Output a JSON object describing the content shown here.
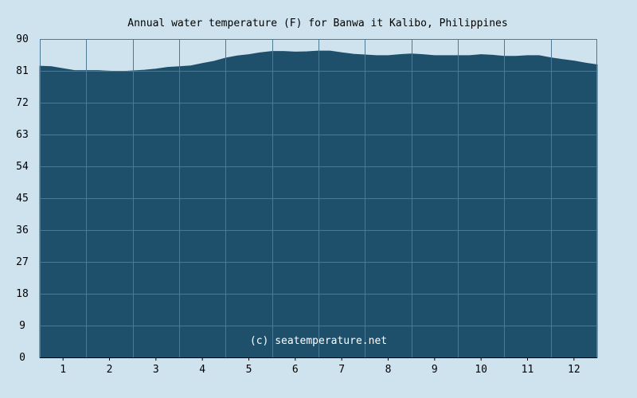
{
  "chart_data": {
    "type": "area",
    "title": "Annual water temperature (F) for Banwa it Kalibo, Philippines",
    "xlabel": "",
    "ylabel": "",
    "x_ticks": [
      "1",
      "2",
      "3",
      "4",
      "5",
      "6",
      "7",
      "8",
      "9",
      "10",
      "11",
      "12"
    ],
    "y_ticks": [
      "0",
      "9",
      "18",
      "27",
      "36",
      "45",
      "54",
      "63",
      "72",
      "81",
      "90"
    ],
    "ylim": [
      0,
      90
    ],
    "xlim": [
      0.5,
      12.5
    ],
    "grid": true,
    "x": [
      0.5,
      0.75,
      1.0,
      1.25,
      1.5,
      1.75,
      2.0,
      2.25,
      2.5,
      2.75,
      3.0,
      3.25,
      3.5,
      3.75,
      4.0,
      4.25,
      4.5,
      4.75,
      5.0,
      5.25,
      5.5,
      5.75,
      6.0,
      6.25,
      6.5,
      6.75,
      7.0,
      7.25,
      7.5,
      7.75,
      8.0,
      8.25,
      8.5,
      8.75,
      9.0,
      9.25,
      9.5,
      9.75,
      10.0,
      10.25,
      10.5,
      10.75,
      11.0,
      11.25,
      11.5,
      11.75,
      12.0,
      12.25,
      12.5
    ],
    "values": [
      82.3,
      82.2,
      81.6,
      81.1,
      81.1,
      81.1,
      80.9,
      80.8,
      81.0,
      81.2,
      81.5,
      82.0,
      82.2,
      82.4,
      83.1,
      83.7,
      84.6,
      85.2,
      85.6,
      86.1,
      86.5,
      86.5,
      86.3,
      86.4,
      86.6,
      86.6,
      86.1,
      85.7,
      85.5,
      85.3,
      85.3,
      85.6,
      85.8,
      85.6,
      85.3,
      85.3,
      85.3,
      85.3,
      85.6,
      85.4,
      85.1,
      85.1,
      85.3,
      85.3,
      84.7,
      84.2,
      83.8,
      83.2,
      82.7
    ],
    "colors": {
      "background": "#cfe3ef",
      "area_fill": "#1e4f6b",
      "grid": "#4a7a95",
      "axis": "#000000"
    }
  },
  "watermark": "(c) seatemperature.net"
}
